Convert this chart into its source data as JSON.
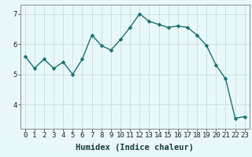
{
  "x": [
    0,
    1,
    2,
    3,
    4,
    5,
    6,
    7,
    8,
    9,
    10,
    11,
    12,
    13,
    14,
    15,
    16,
    17,
    18,
    19,
    20,
    21,
    22,
    23
  ],
  "y": [
    5.6,
    5.2,
    5.5,
    5.2,
    5.4,
    5.0,
    5.5,
    6.3,
    5.95,
    5.8,
    6.15,
    6.55,
    7.0,
    6.75,
    6.65,
    6.55,
    6.6,
    6.55,
    6.3,
    5.95,
    5.3,
    4.85,
    3.55,
    3.6
  ],
  "xlabel": "Humidex (Indice chaleur)",
  "ylim": [
    3.2,
    7.3
  ],
  "xlim": [
    -0.5,
    23.5
  ],
  "yticks": [
    4,
    5,
    6,
    7
  ],
  "xticks": [
    0,
    1,
    2,
    3,
    4,
    5,
    6,
    7,
    8,
    9,
    10,
    11,
    12,
    13,
    14,
    15,
    16,
    17,
    18,
    19,
    20,
    21,
    22,
    23
  ],
  "line_color": "#1a7070",
  "marker_color": "#1a7070",
  "bg_color": "#e8f8f8",
  "grid_color": "#c8dede",
  "axis_color": "#888888",
  "xlabel_fontsize": 7.5,
  "tick_fontsize": 6.5,
  "marker_size": 2.5,
  "line_width": 1.0
}
